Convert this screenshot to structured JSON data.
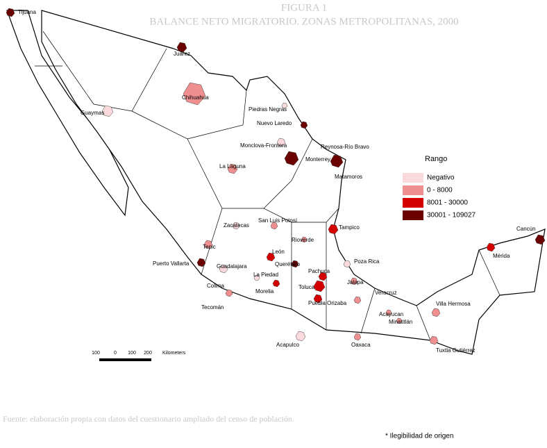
{
  "header": {
    "title": "FIGURA 1",
    "subtitle": "BALANCE NETO MIGRATORIO. ZONAS METROPOLITANAS, 2000"
  },
  "map": {
    "cities": [
      "Tijuana",
      "Juárez",
      "Chihuahua",
      "Guaymas",
      "Piedras Negras",
      "Nuevo Laredo",
      "Monclova-Frontera",
      "Monterrey",
      "Reynosa-Río Bravo",
      "Matamoros",
      "La Laguna",
      "Zacatecas",
      "San Luis Potosí",
      "Tampico",
      "Tepic",
      "Rioverde",
      "León",
      "Querétaro",
      "Puerto Vallarta",
      "Guadalajara",
      "La Piedad",
      "Pachuca",
      "Poza Rica",
      "Colima",
      "Morelia",
      "Toluca",
      "Jalapa",
      "Puebla Orizaba",
      "Veracruz",
      "Tecomán",
      "Acayucan",
      "Minatitlán",
      "Villa Hermosa",
      "Mérida",
      "Cancún",
      "Acapulco",
      "Oaxaca",
      "Tuxtla Gutiérrez"
    ]
  },
  "legend": {
    "title": "Rango",
    "items": [
      {
        "label": "Negativo",
        "color": "#fbd9dc"
      },
      {
        "label": "0 - 8000",
        "color": "#f08f8f"
      },
      {
        "label": "8001 - 30000",
        "color": "#d40000"
      },
      {
        "label": "30001 - 109027",
        "color": "#6b0000"
      }
    ]
  },
  "scale": {
    "ticks": [
      "100",
      "0",
      "100",
      "200"
    ],
    "unit": "Kilometers"
  },
  "footer": {
    "source": "Fuente: elaboración propia con datos del cuestionario ampliado del censo de población.",
    "note": "* Ilegibilidad de origen"
  }
}
